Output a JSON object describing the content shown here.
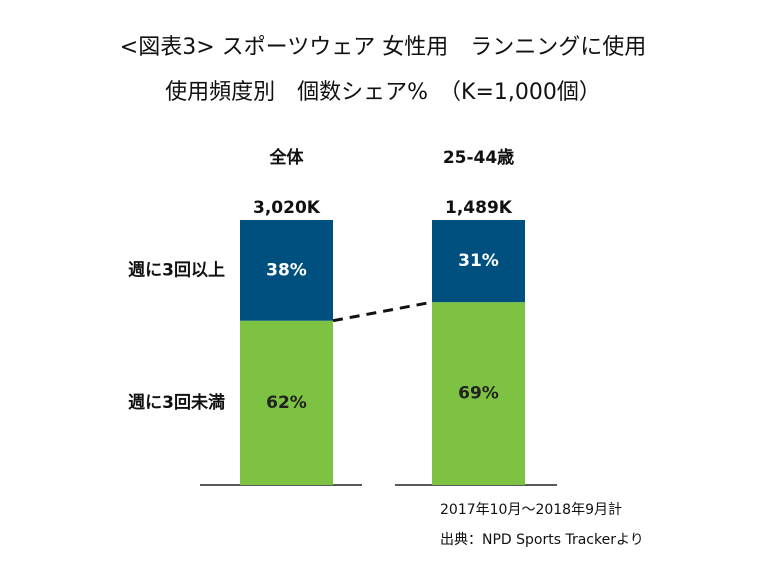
{
  "chart_data": {
    "type": "stacked_bar",
    "title": "<図表3> スポーツウェア 女性用　ランニングに使用",
    "subtitle": "使用頻度別　個数シェア%　（K=1,000個）",
    "categories": [
      "全体",
      "25-44歳"
    ],
    "totals": [
      {
        "value": 3020,
        "label": "3,020K"
      },
      {
        "value": 1489,
        "label": "1,489K"
      }
    ],
    "series": [
      {
        "name": "週に3回未満",
        "color": "#7dc242",
        "values": [
          62,
          69
        ],
        "value_labels": [
          "62%",
          "69%"
        ],
        "label_color": "#222222"
      },
      {
        "name": "週に3回以上",
        "color": "#00507f",
        "values": [
          38,
          31
        ],
        "value_labels": [
          "38%",
          "31%"
        ],
        "label_color": "#ffffff"
      }
    ],
    "ylim": [
      0,
      100
    ],
    "notes": [
      "2017年10月～2018年9月計",
      "出典：NPD Sports Trackerより"
    ]
  }
}
